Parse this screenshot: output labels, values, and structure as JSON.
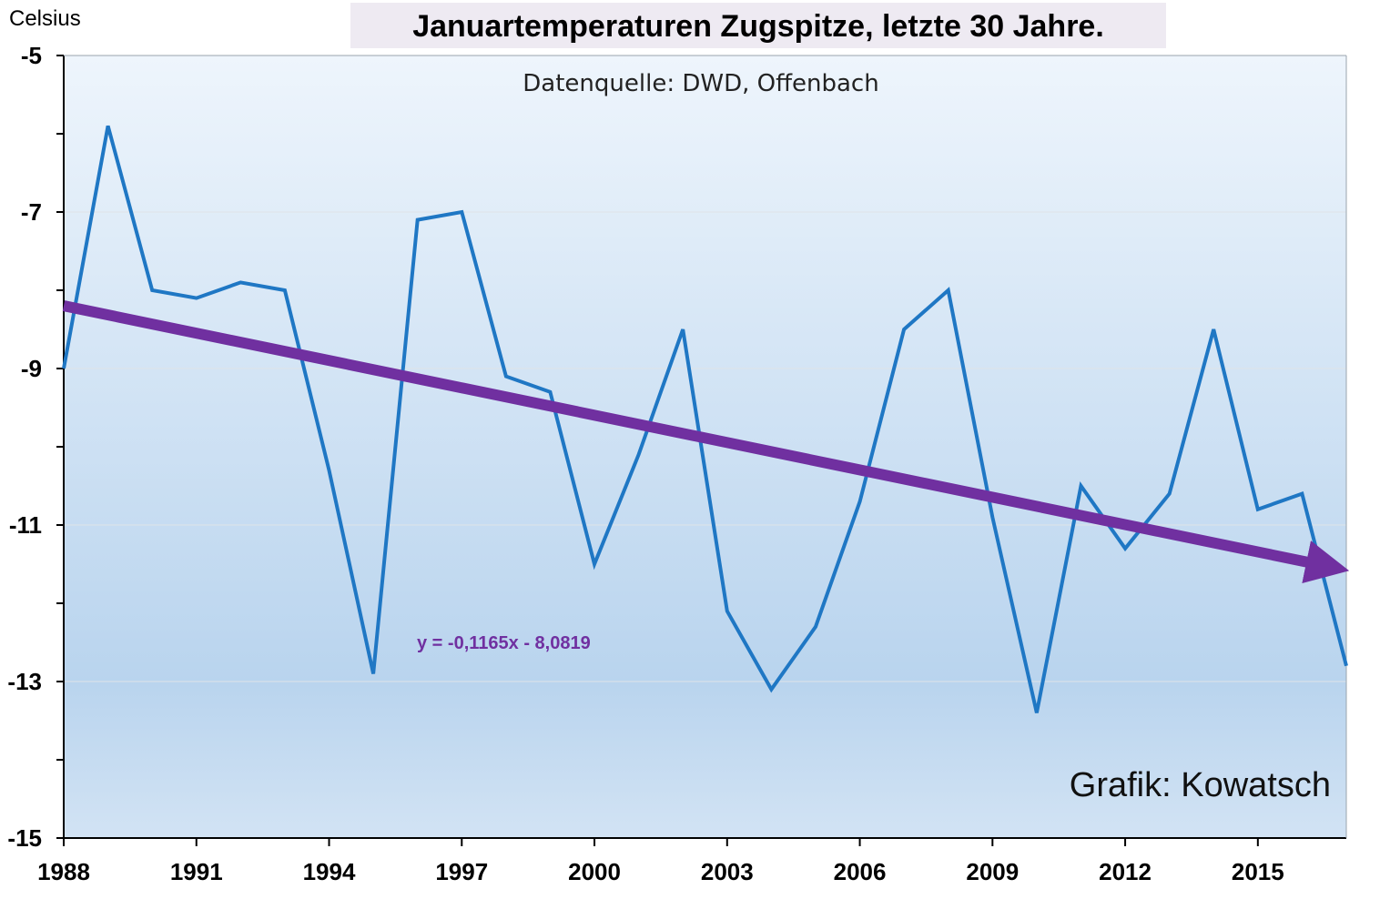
{
  "chart_data": {
    "type": "line",
    "title": "Januartemperaturen Zugspitze, letzte 30 Jahre.",
    "subtitle": "Datenquelle: DWD, Offenbach",
    "ylabel": "Celsius",
    "xlabel": "",
    "credit": "Grafik: Kowatsch",
    "ylim": [
      -15,
      -5
    ],
    "yticks": [
      -5,
      -7,
      -9,
      -11,
      -13,
      -15
    ],
    "xlim": [
      1988,
      2017
    ],
    "xticks": [
      1988,
      1991,
      1994,
      1997,
      2000,
      2003,
      2006,
      2009,
      2012,
      2015
    ],
    "grid": true,
    "series": [
      {
        "color": "#1F77C4",
        "x": [
          1988,
          1989,
          1990,
          1991,
          1992,
          1993,
          1994,
          1995,
          1996,
          1997,
          1998,
          1999,
          2000,
          2001,
          2002,
          2003,
          2004,
          2005,
          2006,
          2007,
          2008,
          2009,
          2010,
          2011,
          2012,
          2013,
          2014,
          2015,
          2016,
          2017
        ],
        "values": [
          -9.0,
          -5.9,
          -8.0,
          -8.1,
          -7.9,
          -8.0,
          -10.3,
          -12.9,
          -7.1,
          -7.0,
          -9.1,
          -9.3,
          -11.5,
          -10.1,
          -8.5,
          -12.1,
          -13.1,
          -12.3,
          -10.7,
          -8.5,
          -8.0,
          -10.9,
          -13.4,
          -10.5,
          -11.3,
          -10.6,
          -8.5,
          -10.8,
          -10.6,
          -12.8
        ]
      }
    ],
    "trendline": {
      "equation": "y = -0,1165x - 8,0819",
      "slope": -0.1165,
      "intercept": -8.0819,
      "color": "#7030A0"
    }
  }
}
